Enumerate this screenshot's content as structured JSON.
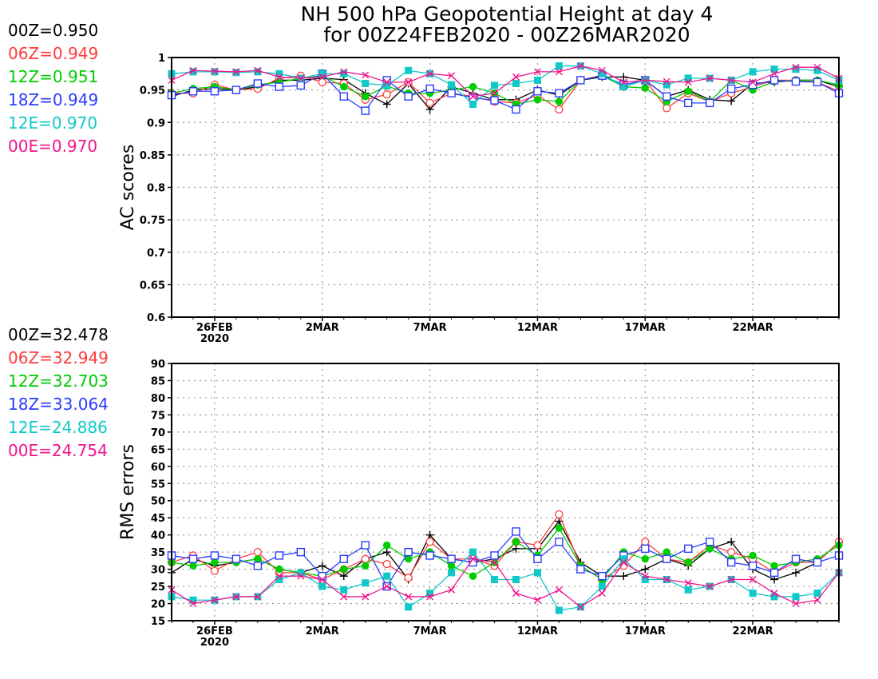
{
  "title": {
    "line1": "NH 500 hPa Geopotential Height at day 4",
    "line2": "for 00Z24FEB2020 - 00Z26MAR2020"
  },
  "colors": {
    "00Z": "#000000",
    "06Z": "#ff3b3b",
    "12Z": "#00cc00",
    "18Z": "#2a3cff",
    "12E": "#10c8c8",
    "00E": "#f0148c"
  },
  "ac_legend": [
    {
      "label": "00Z=0.950",
      "color": "#000000"
    },
    {
      "label": "06Z=0.949",
      "color": "#ff3b3b"
    },
    {
      "label": "12Z=0.951",
      "color": "#00cc00"
    },
    {
      "label": "18Z=0.949",
      "color": "#2a3cff"
    },
    {
      "label": "12E=0.970",
      "color": "#10c8c8"
    },
    {
      "label": "00E=0.970",
      "color": "#f0148c"
    }
  ],
  "rms_legend": [
    {
      "label": "00Z=32.478",
      "color": "#000000"
    },
    {
      "label": "06Z=32.949",
      "color": "#ff3b3b"
    },
    {
      "label": "12Z=32.703",
      "color": "#00cc00"
    },
    {
      "label": "18Z=33.064",
      "color": "#2a3cff"
    },
    {
      "label": "12E=24.886",
      "color": "#10c8c8"
    },
    {
      "label": "00E=24.754",
      "color": "#f0148c"
    }
  ],
  "chart_data": [
    {
      "type": "line",
      "ylabel": "AC scores",
      "xlabel": "",
      "ylim": [
        0.6,
        1
      ],
      "yticks": [
        "0.6",
        "0.65",
        "0.7",
        "0.75",
        "0.8",
        "0.85",
        "0.9",
        "0.95",
        "1"
      ],
      "xlim": [
        "24FEB2020",
        "26MAR2020"
      ],
      "xticks": [
        {
          "label": "26FEB",
          "sub": "2020",
          "x": 2
        },
        {
          "label": "2MAR",
          "sub": "",
          "x": 7
        },
        {
          "label": "7MAR",
          "sub": "",
          "x": 12
        },
        {
          "label": "12MAR",
          "sub": "",
          "x": 17
        },
        {
          "label": "17MAR",
          "sub": "",
          "x": 22
        },
        {
          "label": "22MAR",
          "sub": "",
          "x": 27
        }
      ],
      "grid": true,
      "x": [
        "24FEB",
        "25FEB",
        "26FEB",
        "27FEB",
        "28FEB",
        "29FEB",
        "1MAR",
        "2MAR",
        "3MAR",
        "4MAR",
        "5MAR",
        "6MAR",
        "7MAR",
        "8MAR",
        "9MAR",
        "10MAR",
        "11MAR",
        "12MAR",
        "13MAR",
        "14MAR",
        "15MAR",
        "16MAR",
        "17MAR",
        "18MAR",
        "19MAR",
        "20MAR",
        "21MAR",
        "22MAR",
        "23MAR",
        "24MAR",
        "25MAR",
        "26MAR"
      ],
      "series": [
        {
          "name": "00Z",
          "marker": "plus",
          "values": [
            0.94,
            0.95,
            0.952,
            0.95,
            0.955,
            0.965,
            0.965,
            0.968,
            0.966,
            0.945,
            0.928,
            0.96,
            0.92,
            0.955,
            0.945,
            0.935,
            0.935,
            0.95,
            0.942,
            0.965,
            0.97,
            0.97,
            0.965,
            0.94,
            0.95,
            0.935,
            0.933,
            0.96,
            0.962,
            0.965,
            0.965,
            0.955
          ]
        },
        {
          "name": "06Z",
          "marker": "circle",
          "values": [
            0.945,
            0.945,
            0.958,
            0.95,
            0.952,
            0.968,
            0.972,
            0.962,
            0.96,
            0.935,
            0.943,
            0.962,
            0.93,
            0.945,
            0.94,
            0.932,
            0.93,
            0.942,
            0.92,
            0.965,
            0.973,
            0.955,
            0.965,
            0.922,
            0.945,
            0.932,
            0.945,
            0.955,
            0.965,
            0.965,
            0.962,
            0.948
          ]
        },
        {
          "name": "12Z",
          "marker": "dot",
          "values": [
            0.945,
            0.952,
            0.955,
            0.95,
            0.958,
            0.962,
            0.968,
            0.972,
            0.955,
            0.94,
            0.956,
            0.945,
            0.945,
            0.95,
            0.955,
            0.945,
            0.928,
            0.935,
            0.932,
            0.965,
            0.972,
            0.955,
            0.953,
            0.932,
            0.948,
            0.932,
            0.965,
            0.95,
            0.963,
            0.965,
            0.965,
            0.958
          ]
        },
        {
          "name": "18Z",
          "marker": "square",
          "values": [
            0.942,
            0.948,
            0.948,
            0.95,
            0.96,
            0.955,
            0.957,
            0.975,
            0.94,
            0.918,
            0.965,
            0.94,
            0.952,
            0.945,
            0.938,
            0.934,
            0.92,
            0.948,
            0.945,
            0.965,
            0.972,
            0.958,
            0.965,
            0.94,
            0.93,
            0.93,
            0.952,
            0.958,
            0.965,
            0.963,
            0.962,
            0.945
          ]
        },
        {
          "name": "12E",
          "marker": "filled-square",
          "values": [
            0.975,
            0.978,
            0.978,
            0.977,
            0.978,
            0.975,
            0.968,
            0.975,
            0.975,
            0.96,
            0.957,
            0.98,
            0.975,
            0.958,
            0.928,
            0.957,
            0.96,
            0.965,
            0.987,
            0.987,
            0.975,
            0.955,
            0.965,
            0.958,
            0.968,
            0.968,
            0.965,
            0.978,
            0.982,
            0.982,
            0.98,
            0.965
          ]
        },
        {
          "name": "00E",
          "marker": "x",
          "values": [
            0.965,
            0.98,
            0.979,
            0.978,
            0.98,
            0.97,
            0.968,
            0.97,
            0.978,
            0.973,
            0.962,
            0.962,
            0.975,
            0.972,
            0.94,
            0.945,
            0.97,
            0.978,
            0.978,
            0.987,
            0.98,
            0.962,
            0.965,
            0.963,
            0.962,
            0.968,
            0.965,
            0.962,
            0.975,
            0.985,
            0.985,
            0.968
          ]
        }
      ]
    },
    {
      "type": "line",
      "ylabel": "RMS errors",
      "xlabel": "",
      "ylim": [
        15,
        90
      ],
      "yticks": [
        "15",
        "20",
        "25",
        "30",
        "35",
        "40",
        "45",
        "50",
        "55",
        "60",
        "65",
        "70",
        "75",
        "80",
        "85",
        "90"
      ],
      "xlim": [
        "24FEB2020",
        "26MAR2020"
      ],
      "xticks": [
        {
          "label": "26FEB",
          "sub": "2020",
          "x": 2
        },
        {
          "label": "2MAR",
          "sub": "",
          "x": 7
        },
        {
          "label": "7MAR",
          "sub": "",
          "x": 12
        },
        {
          "label": "12MAR",
          "sub": "",
          "x": 17
        },
        {
          "label": "17MAR",
          "sub": "",
          "x": 22
        },
        {
          "label": "22MAR",
          "sub": "",
          "x": 27
        }
      ],
      "grid": true,
      "x": [
        "24FEB",
        "25FEB",
        "26FEB",
        "27FEB",
        "28FEB",
        "29FEB",
        "1MAR",
        "2MAR",
        "3MAR",
        "4MAR",
        "5MAR",
        "6MAR",
        "7MAR",
        "8MAR",
        "9MAR",
        "10MAR",
        "11MAR",
        "12MAR",
        "13MAR",
        "14MAR",
        "15MAR",
        "16MAR",
        "17MAR",
        "18MAR",
        "19MAR",
        "20MAR",
        "21MAR",
        "22MAR",
        "23MAR",
        "24MAR",
        "25MAR",
        "26MAR"
      ],
      "series": [
        {
          "name": "00Z",
          "marker": "plus",
          "values": [
            29,
            33,
            31,
            32,
            33,
            30,
            29,
            31,
            28,
            33,
            35,
            27,
            40,
            33,
            32,
            33,
            36,
            36,
            44,
            32,
            28,
            28,
            30,
            33,
            31,
            36,
            38,
            30,
            27,
            29,
            32,
            38
          ]
        },
        {
          "name": "06Z",
          "marker": "circle",
          "values": [
            32,
            34,
            29.5,
            33,
            35,
            29,
            29,
            27,
            30,
            33,
            31.5,
            27.5,
            38,
            33,
            33,
            31,
            38,
            37,
            46,
            31,
            27,
            31,
            38,
            33,
            32,
            37,
            35,
            33,
            29,
            32,
            32,
            38
          ]
        },
        {
          "name": "12Z",
          "marker": "dot",
          "values": [
            32,
            31,
            32,
            32,
            33,
            30,
            29,
            28,
            30,
            31,
            37,
            33,
            35,
            31,
            28,
            32,
            38,
            34,
            42,
            31,
            27,
            35,
            33,
            35,
            32,
            36,
            33,
            34,
            31,
            32,
            33,
            37
          ]
        },
        {
          "name": "18Z",
          "marker": "square",
          "values": [
            34,
            33,
            34,
            33,
            31,
            34,
            35,
            28,
            33,
            37,
            25,
            35,
            34,
            33,
            32,
            34,
            41,
            33,
            38,
            30,
            28,
            34,
            36,
            33,
            36,
            38,
            32,
            31,
            29,
            33,
            32,
            34
          ]
        },
        {
          "name": "12E",
          "marker": "filled-square",
          "values": [
            22,
            21,
            21,
            22,
            22,
            27,
            29,
            25,
            24,
            26,
            28,
            19,
            23,
            29,
            35,
            27,
            27,
            29,
            18,
            19,
            25,
            33,
            27,
            27,
            24,
            25,
            27,
            23,
            22,
            22,
            23,
            29
          ]
        },
        {
          "name": "00E",
          "marker": "x",
          "values": [
            24,
            20,
            21,
            22,
            22,
            28,
            28,
            27,
            22,
            22,
            25,
            22,
            22,
            24,
            33,
            32,
            23,
            21,
            24,
            19,
            23,
            32,
            28,
            27,
            26,
            25,
            27,
            27,
            23,
            20,
            21,
            29
          ]
        }
      ]
    }
  ]
}
